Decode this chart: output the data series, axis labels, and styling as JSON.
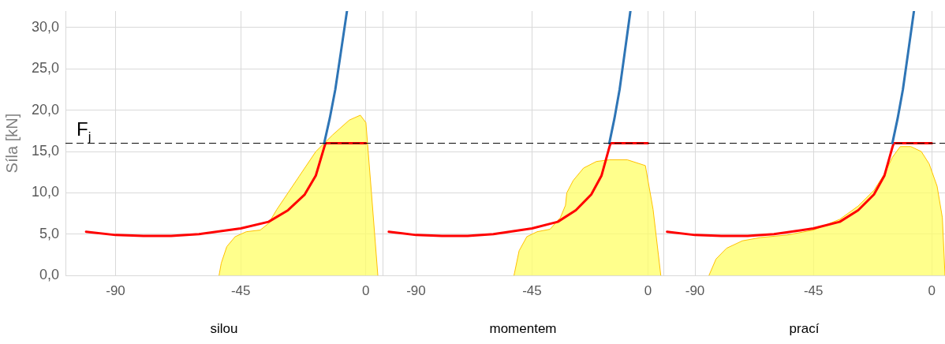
{
  "chart_data": [
    {
      "type": "line",
      "xlabel": "silou",
      "ylabel": "Síla [kN]",
      "xlim": [
        -108,
        6
      ],
      "xticks": [
        -90,
        -45,
        0
      ],
      "ylim": [
        0,
        32
      ],
      "yticks": [
        {
          "value": 0,
          "label": "0,0"
        },
        {
          "value": 5,
          "label": "5,0"
        },
        {
          "value": 10,
          "label": "10,0"
        },
        {
          "value": 15,
          "label": "15,0"
        },
        {
          "value": 20,
          "label": "20,0"
        },
        {
          "value": 25,
          "label": "25,0"
        },
        {
          "value": 30,
          "label": "30,0"
        }
      ],
      "grid": true,
      "legend": false,
      "marker": "none",
      "ref_lines": [
        {
          "axis": "y",
          "value": 16,
          "label": "F$_{j}$",
          "color": "#000000",
          "line_style": "dashed"
        }
      ],
      "series": [
        {
          "type": "area",
          "color": "#ffc000",
          "x": [
            -52.8,
            -52,
            -50,
            -47,
            -43,
            -38,
            -35,
            -32,
            -28,
            -24,
            -18,
            -12,
            -6,
            -2,
            0,
            2,
            4.3
          ],
          "values": [
            0,
            1.5,
            3.5,
            4.7,
            5.3,
            5.5,
            6.3,
            8,
            10,
            12,
            15,
            17,
            18.8,
            19.4,
            18.5,
            10,
            0
          ]
        },
        {
          "type": "line",
          "color": "#2e75b6",
          "x": [
            -15,
            -13,
            -11,
            -9,
            -6.8
          ],
          "values": [
            16,
            19,
            22.5,
            27,
            32
          ]
        },
        {
          "type": "line",
          "color": "#ff0000",
          "x": [
            -100.6,
            -90,
            -80,
            -70,
            -60,
            -45,
            -35,
            -28,
            -22,
            -18,
            -15,
            -14.5,
            0
          ],
          "values": [
            5.3,
            4.9,
            4.8,
            4.8,
            5,
            5.7,
            6.5,
            7.9,
            9.8,
            12.1,
            15.5,
            16,
            16
          ]
        }
      ]
    },
    {
      "type": "line",
      "xlabel": "momentem",
      "xlim": [
        -103,
        6
      ],
      "xticks": [
        -90,
        -45,
        0
      ],
      "ylim": [
        0,
        32
      ],
      "yticks": [
        0,
        5,
        10,
        15,
        20,
        25,
        30
      ],
      "grid": true,
      "legend": false,
      "marker": "none",
      "tick_labels": "x",
      "ref_lines": [
        {
          "axis": "y",
          "value": 16,
          "color": "#000000",
          "line_style": "dashed"
        }
      ],
      "series": [
        {
          "type": "area",
          "color": "#ffc000",
          "x": [
            -52,
            -50,
            -47,
            -43,
            -38,
            -34,
            -32,
            -31.5,
            -29,
            -25,
            -20,
            -15,
            -8,
            -1,
            2,
            5
          ],
          "values": [
            0,
            3,
            4.7,
            5.3,
            5.6,
            7,
            8.5,
            10,
            11.5,
            13,
            13.8,
            14,
            14,
            13.3,
            8,
            0
          ]
        },
        {
          "type": "line",
          "color": "#2e75b6",
          "x": [
            -15,
            -13,
            -11,
            -9,
            -6.8
          ],
          "values": [
            16,
            19,
            22.5,
            27,
            32
          ]
        },
        {
          "type": "line",
          "color": "#ff0000",
          "x": [
            -100.6,
            -90,
            -80,
            -70,
            -60,
            -45,
            -35,
            -28,
            -22,
            -18,
            -15,
            -14.5,
            0
          ],
          "values": [
            5.3,
            4.9,
            4.8,
            4.8,
            5,
            5.7,
            6.5,
            7.9,
            9.8,
            12.1,
            15.5,
            16,
            16
          ]
        }
      ]
    },
    {
      "type": "line",
      "xlabel": "prací",
      "xlim": [
        -102,
        5
      ],
      "xticks": [
        -90,
        -45,
        0
      ],
      "ylim": [
        0,
        32
      ],
      "yticks": [
        0,
        5,
        10,
        15,
        20,
        25,
        30
      ],
      "grid": true,
      "legend": false,
      "marker": "none",
      "tick_labels": "x",
      "ref_lines": [
        {
          "axis": "y",
          "value": 16,
          "color": "#000000",
          "line_style": "dashed"
        }
      ],
      "series": [
        {
          "type": "area",
          "color": "#ffc000",
          "x": [
            -84.7,
            -82,
            -78,
            -72,
            -65,
            -55,
            -45,
            -35,
            -28,
            -22,
            -18,
            -15,
            -12,
            -8,
            -4,
            -1,
            2,
            4,
            5
          ],
          "values": [
            0,
            2,
            3.3,
            4.2,
            4.6,
            4.9,
            5.5,
            6.8,
            8.4,
            10.3,
            12.3,
            14.3,
            15.6,
            15.6,
            15,
            13.5,
            10.8,
            7,
            0
          ]
        },
        {
          "type": "line",
          "color": "#2e75b6",
          "x": [
            -15,
            -13,
            -11,
            -9,
            -6.8
          ],
          "values": [
            16,
            19,
            22.5,
            27,
            32
          ]
        },
        {
          "type": "line",
          "color": "#ff0000",
          "x": [
            -100.6,
            -90,
            -80,
            -70,
            -60,
            -45,
            -35,
            -28,
            -22,
            -18,
            -15,
            -14.5,
            0
          ],
          "values": [
            5.3,
            4.9,
            4.8,
            4.8,
            5,
            5.7,
            6.5,
            7.9,
            9.8,
            12.1,
            15.5,
            16,
            16
          ]
        }
      ]
    }
  ]
}
